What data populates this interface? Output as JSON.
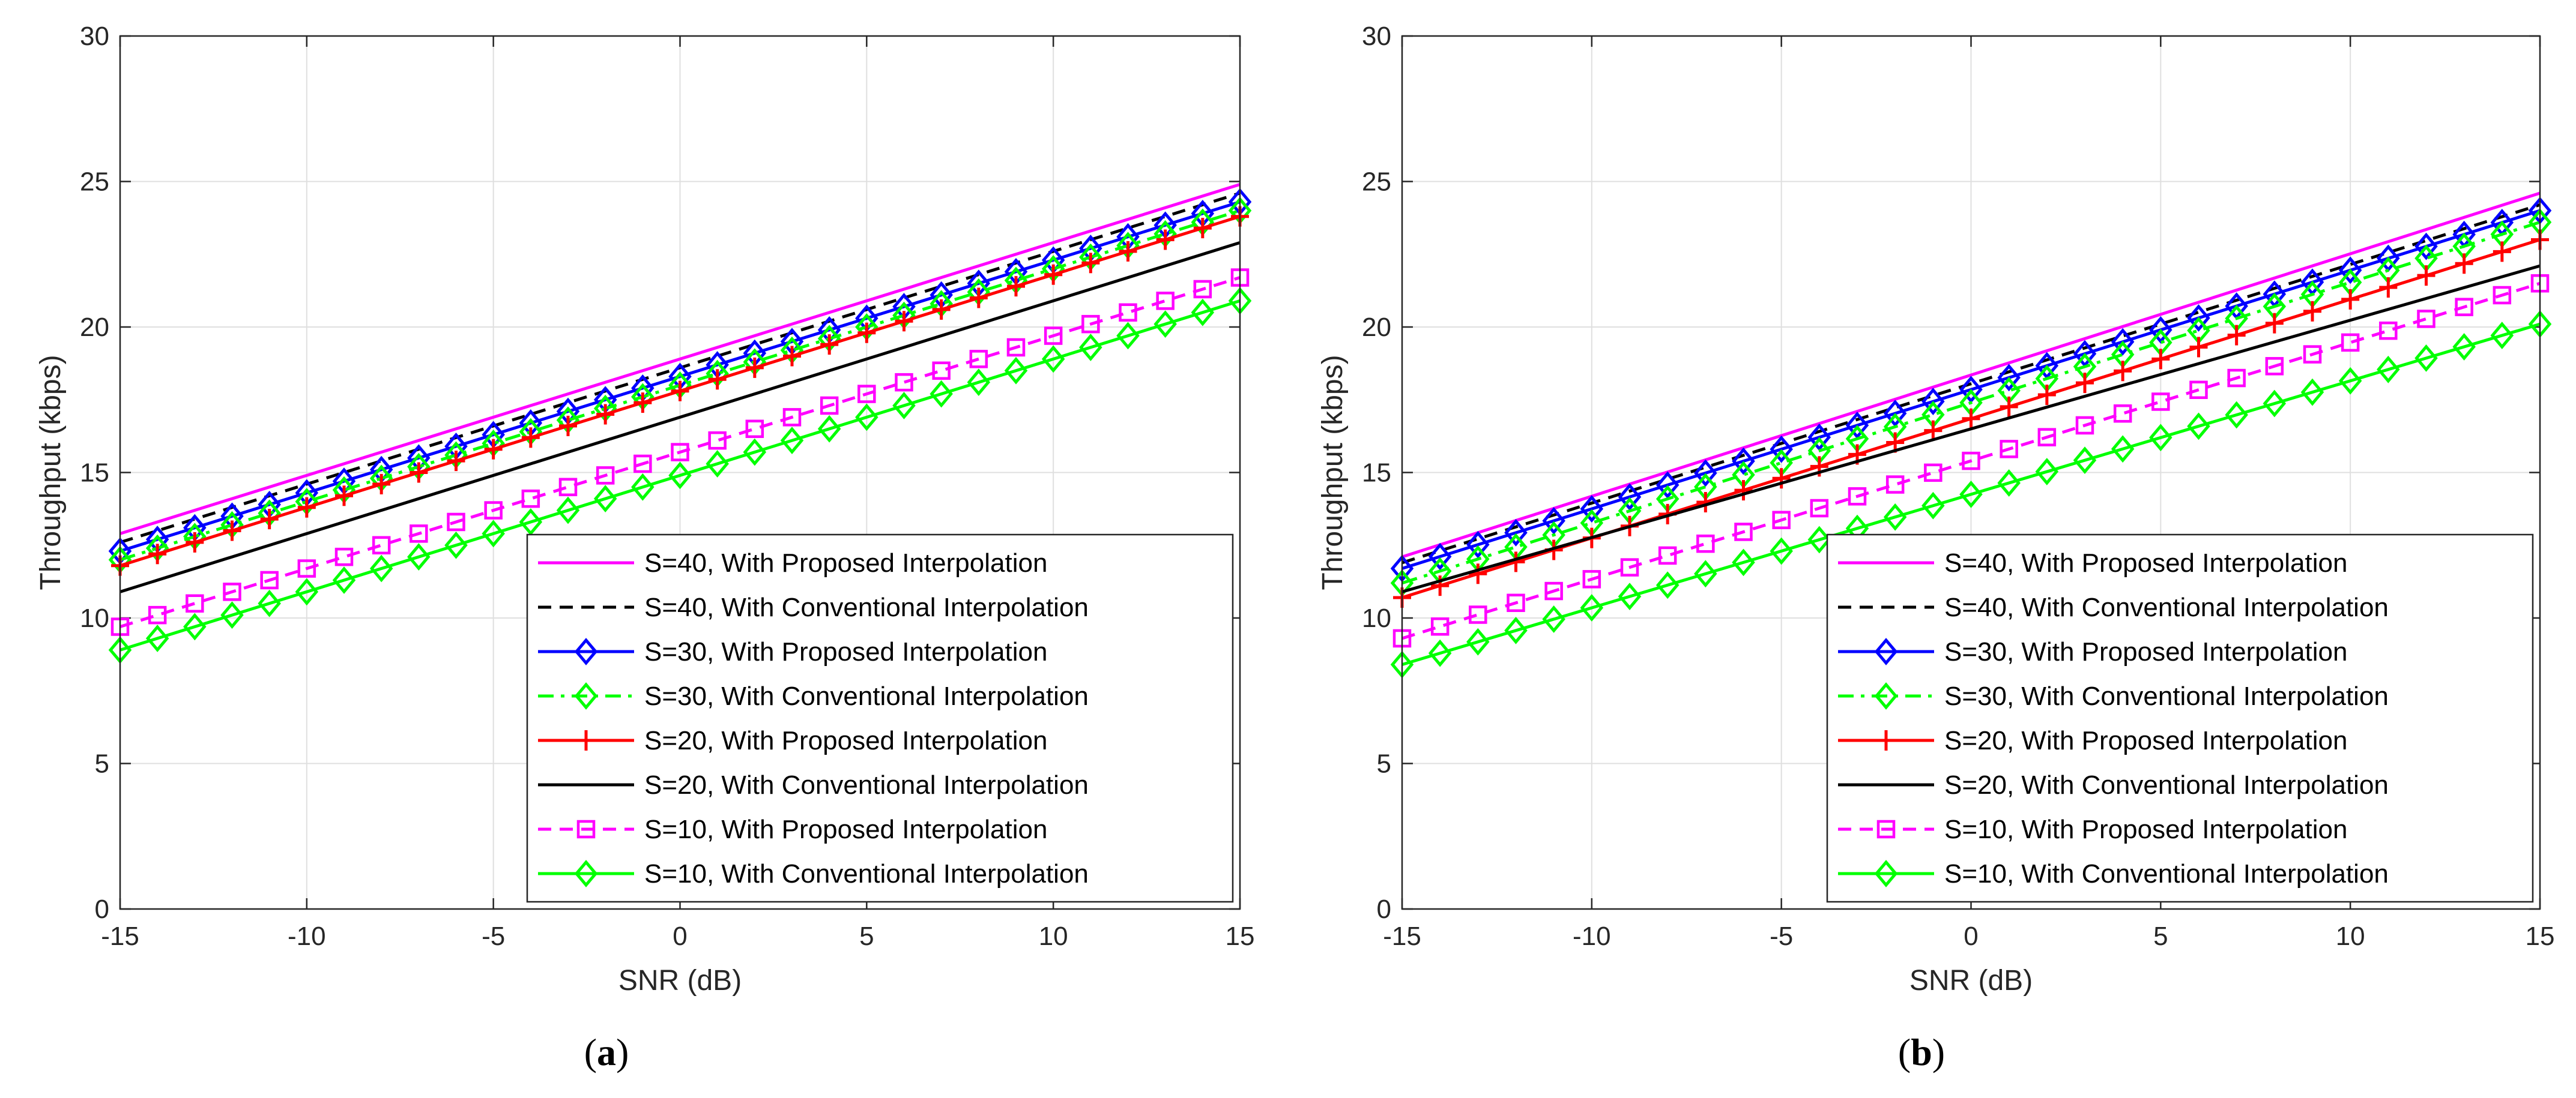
{
  "chart_data": [
    {
      "type": "line",
      "panel_label": "a",
      "xlabel": "SNR (dB)",
      "ylabel": "Throughput (kbps)",
      "xlim": [
        -15,
        15
      ],
      "ylim": [
        0,
        30
      ],
      "xticks": [
        -15,
        -10,
        -5,
        0,
        5,
        10,
        15
      ],
      "yticks": [
        0,
        5,
        10,
        15,
        20,
        25,
        30
      ],
      "grid": true,
      "legend_position": "bottom-right",
      "series": [
        {
          "name": "S=40, With Proposed Interpolation",
          "color": "#ff00ff",
          "style": "solid",
          "marker": "none",
          "y_start": 12.9,
          "y_end": 24.9
        },
        {
          "name": "S=40, With Conventional Interpolation",
          "color": "#000000",
          "style": "dashed",
          "marker": "none",
          "y_start": 12.6,
          "y_end": 24.6
        },
        {
          "name": "S=30, With Proposed Interpolation",
          "color": "#0000ff",
          "style": "solid",
          "marker": "diamond",
          "y_start": 12.3,
          "y_end": 24.3
        },
        {
          "name": "S=30, With Conventional Interpolation",
          "color": "#00ff00",
          "style": "dashdot",
          "marker": "diamond",
          "y_start": 12.0,
          "y_end": 24.0
        },
        {
          "name": "S=20, With Proposed Interpolation",
          "color": "#ff0000",
          "style": "solid",
          "marker": "plus",
          "y_start": 11.8,
          "y_end": 23.8
        },
        {
          "name": "S=20, With Conventional Interpolation",
          "color": "#000000",
          "style": "solid",
          "marker": "none",
          "y_start": 10.9,
          "y_end": 22.9
        },
        {
          "name": "S=10, With Proposed Interpolation",
          "color": "#ff00ff",
          "style": "dashed",
          "marker": "square",
          "y_start": 9.7,
          "y_end": 21.7
        },
        {
          "name": "S=10, With Conventional Interpolation",
          "color": "#00ff00",
          "style": "solid",
          "marker": "diamond",
          "y_start": 8.9,
          "y_end": 20.9
        }
      ]
    },
    {
      "type": "line",
      "panel_label": "b",
      "xlabel": "SNR (dB)",
      "ylabel": "Throughput (kbps)",
      "xlim": [
        -15,
        15
      ],
      "ylim": [
        0,
        30
      ],
      "xticks": [
        -15,
        -10,
        -5,
        0,
        5,
        10,
        15
      ],
      "yticks": [
        0,
        5,
        10,
        15,
        20,
        25,
        30
      ],
      "grid": true,
      "legend_position": "bottom-right",
      "series": [
        {
          "name": "S=40, With Proposed Interpolation",
          "color": "#ff00ff",
          "style": "solid",
          "marker": "none",
          "y_start": 12.1,
          "y_end": 24.6
        },
        {
          "name": "S=40, With Conventional Interpolation",
          "color": "#000000",
          "style": "dashed",
          "marker": "none",
          "y_start": 11.9,
          "y_end": 24.2
        },
        {
          "name": "S=30, With Proposed Interpolation",
          "color": "#0000ff",
          "style": "solid",
          "marker": "diamond",
          "y_start": 11.7,
          "y_end": 24.0
        },
        {
          "name": "S=30, With Conventional Interpolation",
          "color": "#00ff00",
          "style": "dashdot",
          "marker": "diamond",
          "y_start": 11.2,
          "y_end": 23.6
        },
        {
          "name": "S=20, With Proposed Interpolation",
          "color": "#ff0000",
          "style": "solid",
          "marker": "plus",
          "y_start": 10.7,
          "y_end": 23.0
        },
        {
          "name": "S=20, With Conventional Interpolation",
          "color": "#000000",
          "style": "solid",
          "marker": "none",
          "y_start": 10.9,
          "y_end": 22.1
        },
        {
          "name": "S=10, With Proposed Interpolation",
          "color": "#ff00ff",
          "style": "dashed",
          "marker": "square",
          "y_start": 9.3,
          "y_end": 21.5
        },
        {
          "name": "S=10, With Conventional Interpolation",
          "color": "#00ff00",
          "style": "solid",
          "marker": "diamond",
          "y_start": 8.4,
          "y_end": 20.1
        }
      ]
    }
  ]
}
